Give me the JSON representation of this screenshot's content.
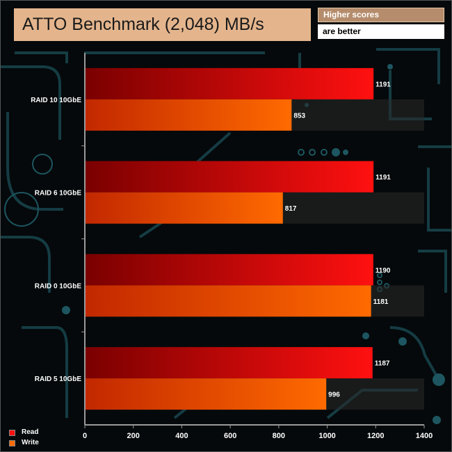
{
  "header": {
    "title": "ATTO Benchmark (2,048) MB/s",
    "hint_line1": "Higher scores",
    "hint_line2": "are better"
  },
  "colors": {
    "read_dark": "#7a0000",
    "read_light": "#ff1010",
    "write_dark": "#c22800",
    "write_light": "#ff6a00",
    "title_box": "#e4b58d",
    "hint_box": "#b58d6c",
    "circuit": "#17424a"
  },
  "chart_data": {
    "type": "bar",
    "orientation": "horizontal",
    "categories": [
      "RAID 10 10GbE",
      "RAID 6 10GbE",
      "RAID 0 10GbE",
      "RAID 5 10GbE"
    ],
    "series": [
      {
        "name": "Read",
        "values": [
          1191,
          1191,
          1190,
          1187
        ]
      },
      {
        "name": "Write",
        "values": [
          853,
          817,
          1181,
          996
        ]
      }
    ],
    "xlim": [
      0,
      1400
    ],
    "xticks": [
      "0",
      "200",
      "400",
      "600",
      "800",
      "1000",
      "1200",
      "1400"
    ],
    "title": "ATTO Benchmark (2,048) MB/s",
    "legend_position": "bottom-left",
    "grid": false
  }
}
